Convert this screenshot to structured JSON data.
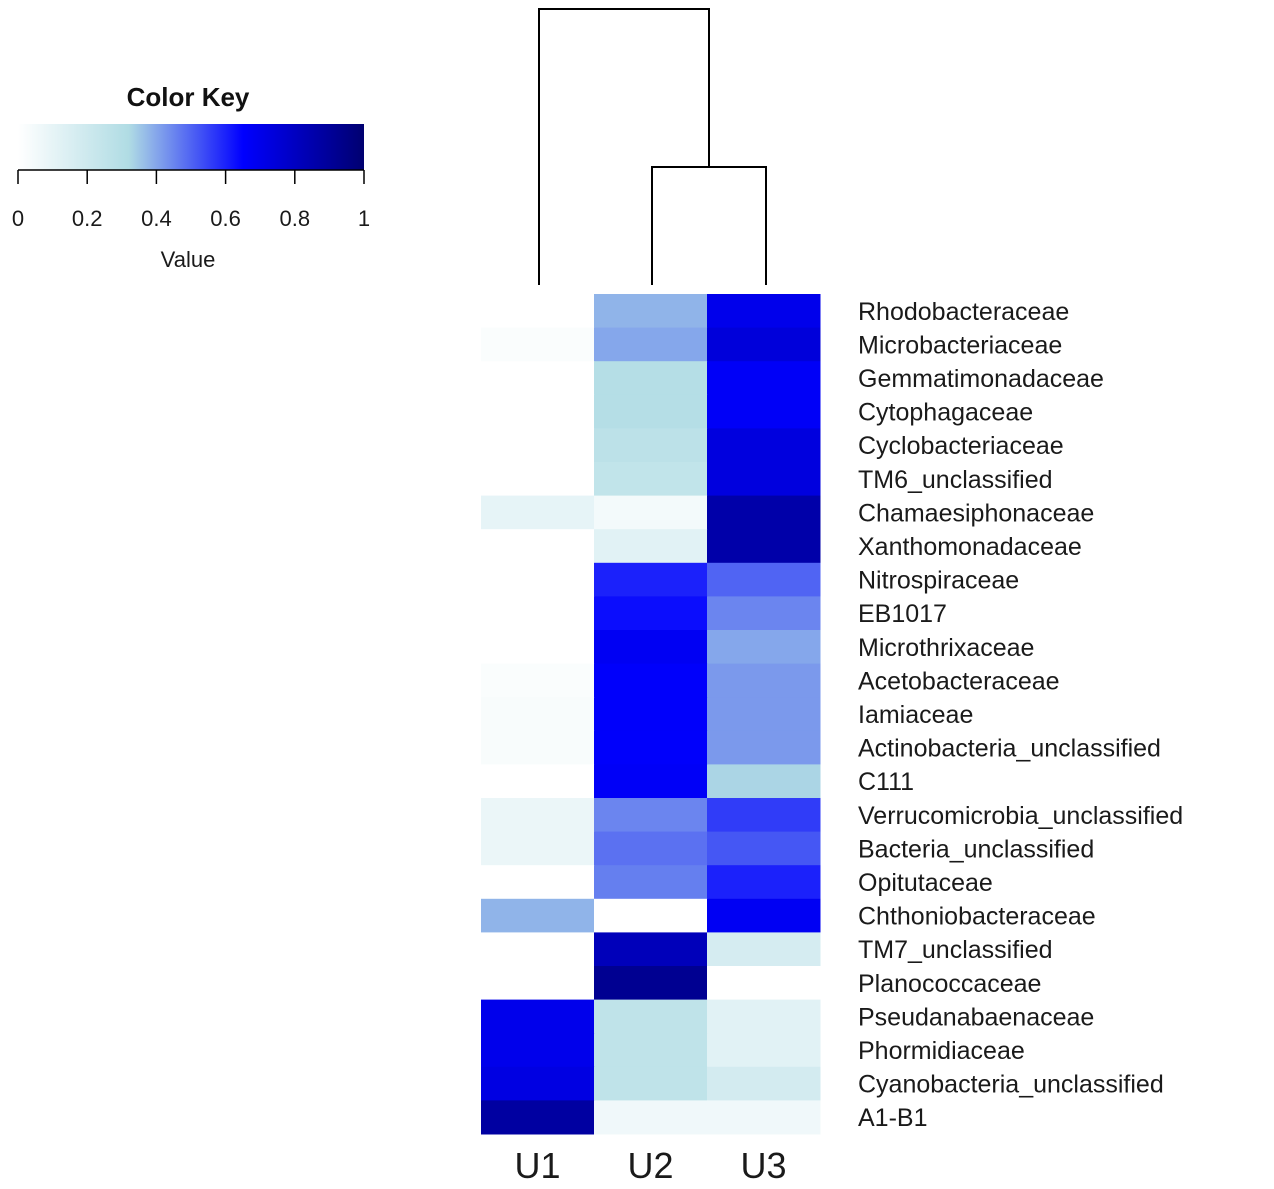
{
  "chart_data": {
    "type": "heatmap",
    "columns": [
      "U1",
      "U2",
      "U3"
    ],
    "rows": [
      "Rhodobacteraceae",
      "Microbacteriaceae",
      "Gemmatimonadaceae",
      "Cytophagaceae",
      "Cyclobacteriaceae",
      "TM6_unclassified",
      "Chamaesiphonaceae",
      "Xanthomonadaceae",
      "Nitrospiraceae",
      "EB1017",
      "Microthrixaceae",
      "Acetobacteraceae",
      "Iamiaceae",
      "Actinobacteria_unclassified",
      "C111",
      "Verrucomicrobia_unclassified",
      "Bacteria_unclassified",
      "Opitutaceae",
      "Chthoniobacteraceae",
      "TM7_unclassified",
      "Planococcaceae",
      "Pseudanabaenaceae",
      "Phormidiaceae",
      "Cyanobacteria_unclassified",
      "A1-B1"
    ],
    "values": [
      [
        0.0,
        0.38,
        0.7
      ],
      [
        0.02,
        0.4,
        0.74
      ],
      [
        0.0,
        0.3,
        0.67
      ],
      [
        0.0,
        0.3,
        0.67
      ],
      [
        0.0,
        0.27,
        0.73
      ],
      [
        0.0,
        0.25,
        0.73
      ],
      [
        0.1,
        0.05,
        0.86
      ],
      [
        0.0,
        0.12,
        0.86
      ],
      [
        0.0,
        0.6,
        0.5
      ],
      [
        0.0,
        0.63,
        0.45
      ],
      [
        0.0,
        0.68,
        0.4
      ],
      [
        0.02,
        0.66,
        0.42
      ],
      [
        0.03,
        0.66,
        0.42
      ],
      [
        0.03,
        0.66,
        0.42
      ],
      [
        0.0,
        0.67,
        0.33
      ],
      [
        0.08,
        0.45,
        0.56
      ],
      [
        0.08,
        0.48,
        0.52
      ],
      [
        0.0,
        0.46,
        0.6
      ],
      [
        0.38,
        0.0,
        0.68
      ],
      [
        0.0,
        0.82,
        0.17
      ],
      [
        0.0,
        0.92,
        0.0
      ],
      [
        0.7,
        0.26,
        0.12
      ],
      [
        0.7,
        0.26,
        0.12
      ],
      [
        0.72,
        0.26,
        0.18
      ],
      [
        0.88,
        0.06,
        0.06
      ]
    ],
    "color_key": {
      "title": "Color Key",
      "axis_label": "Value",
      "ticks": [
        "0",
        "0.2",
        "0.4",
        "0.6",
        "0.8",
        "1"
      ],
      "range": [
        0,
        1
      ],
      "color_stops": [
        "#ffffff",
        "#b0dce4",
        "#0000ff",
        "#000070"
      ]
    },
    "dendrogram": {
      "columns": "((U2,U3),U1)"
    }
  }
}
